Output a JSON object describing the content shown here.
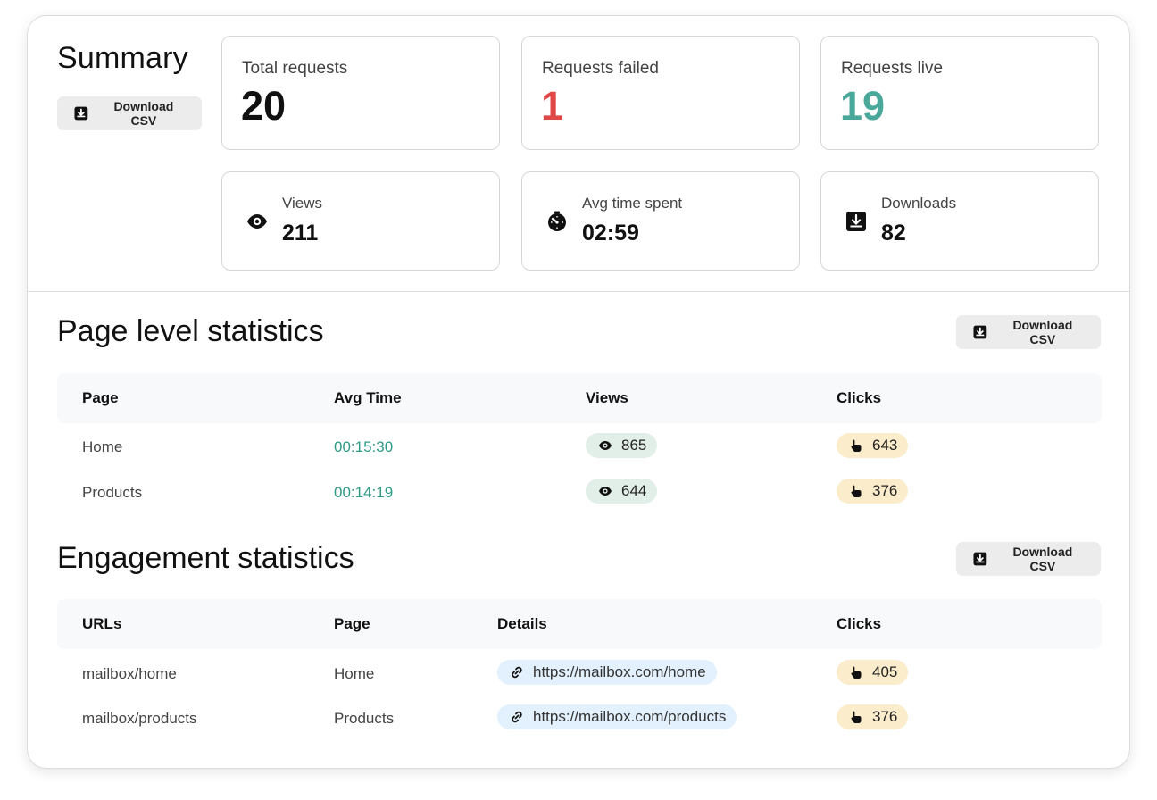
{
  "summary": {
    "title": "Summary",
    "download_label": "Download CSV",
    "total_requests": {
      "label": "Total requests",
      "value": "20"
    },
    "requests_failed": {
      "label": "Requests failed",
      "value": "1"
    },
    "requests_live": {
      "label": "Requests live",
      "value": "19"
    },
    "views": {
      "label": "Views",
      "value": "211"
    },
    "avg_time": {
      "label": "Avg time spent",
      "value": "02:59"
    },
    "downloads": {
      "label": "Downloads",
      "value": "82"
    }
  },
  "page_stats": {
    "title": "Page level statistics",
    "download_label": "Download CSV",
    "columns": [
      "Page",
      "Avg Time",
      "Views",
      "Clicks"
    ],
    "rows": [
      {
        "page": "Home",
        "avg_time": "00:15:30",
        "views": "865",
        "clicks": "643"
      },
      {
        "page": "Products",
        "avg_time": "00:14:19",
        "views": "644",
        "clicks": "376"
      }
    ]
  },
  "engagement": {
    "title": "Engagement statistics",
    "download_label": "Download CSV",
    "columns": [
      "URLs",
      "Page",
      "Details",
      "Clicks"
    ],
    "rows": [
      {
        "url": "mailbox/home",
        "page": "Home",
        "details": "https://mailbox.com/home",
        "clicks": "405"
      },
      {
        "url": "mailbox/products",
        "page": "Products",
        "details": "https://mailbox.com/products",
        "clicks": "376"
      }
    ]
  },
  "colors": {
    "failed": "#e04848",
    "live": "#4aa89b",
    "time": "#2f9a86",
    "views_pill": "#e2efe8",
    "clicks_pill": "#fbeccc",
    "link_pill": "#e3f0fd"
  }
}
